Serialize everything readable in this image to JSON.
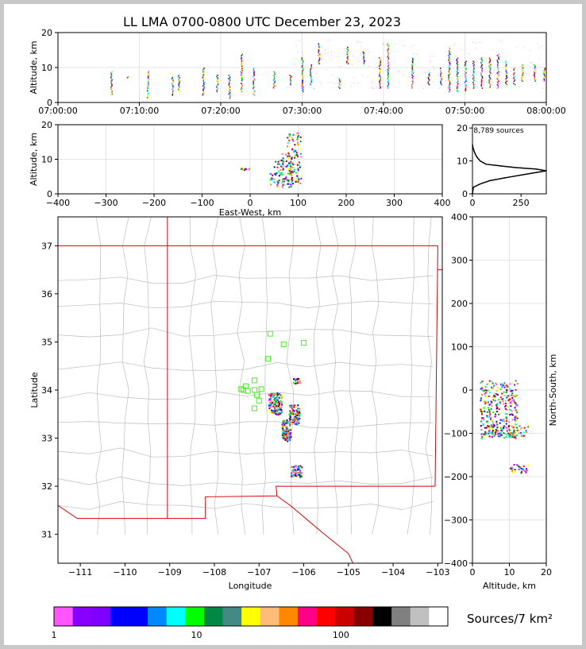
{
  "title": "LL LMA 0700-0800 UTC December 23, 2023",
  "colorbar": {
    "label": "Sources/7 km²",
    "colors": [
      "#ff55ff",
      "#8800ff",
      "#7f00ff",
      "#0000ff",
      "#0000ff",
      "#0088ff",
      "#00ffff",
      "#00ff00",
      "#008844",
      "#448888",
      "#ffff00",
      "#ffbb77",
      "#ff8800",
      "#ff0088",
      "#ff0000",
      "#cc0000",
      "#880000",
      "#000000",
      "#808080",
      "#c0c0c0",
      "#ffffff"
    ],
    "tick_labels": [
      "1",
      "10",
      "100"
    ]
  },
  "chart_data": [
    {
      "id": "time-height",
      "type": "scatter",
      "xlabel": "",
      "ylabel": "Altitude, km",
      "x_tick_labels": [
        "07:00:00",
        "07:10:00",
        "07:20:00",
        "07:30:00",
        "07:40:00",
        "07:50:00",
        "08:00:00"
      ],
      "x_ticks_minutes": [
        0,
        10,
        20,
        30,
        40,
        50,
        60
      ],
      "xlim_minutes": [
        0,
        60
      ],
      "ylim": [
        0,
        20
      ],
      "y_ticks": [
        0,
        10,
        20
      ],
      "grid": true,
      "bursts": [
        {
          "t": 6.5,
          "zmin": 2,
          "zmax": 9
        },
        {
          "t": 8.5,
          "zmin": 7,
          "zmax": 7.5
        },
        {
          "t": 11,
          "zmin": 1,
          "zmax": 9
        },
        {
          "t": 14,
          "zmin": 2,
          "zmax": 8
        },
        {
          "t": 14.8,
          "zmin": 3,
          "zmax": 8
        },
        {
          "t": 17.8,
          "zmin": 2,
          "zmax": 10
        },
        {
          "t": 19.5,
          "zmin": 3,
          "zmax": 8
        },
        {
          "t": 21,
          "zmin": 1,
          "zmax": 8
        },
        {
          "t": 22.5,
          "zmin": 3,
          "zmax": 14
        },
        {
          "t": 24,
          "zmin": 2,
          "zmax": 10
        },
        {
          "t": 26.5,
          "zmin": 4,
          "zmax": 9
        },
        {
          "t": 28.5,
          "zmin": 5,
          "zmax": 8
        },
        {
          "t": 30,
          "zmin": 3,
          "zmax": 13
        },
        {
          "t": 31,
          "zmin": 5,
          "zmax": 11
        },
        {
          "t": 32,
          "zmin": 11,
          "zmax": 17
        },
        {
          "t": 34.5,
          "zmin": 4,
          "zmax": 7
        },
        {
          "t": 35.5,
          "zmin": 11,
          "zmax": 16
        },
        {
          "t": 37.5,
          "zmin": 11,
          "zmax": 15
        },
        {
          "t": 39.5,
          "zmin": 4,
          "zmax": 13
        },
        {
          "t": 40.5,
          "zmin": 4,
          "zmax": 17
        },
        {
          "t": 43.5,
          "zmin": 4,
          "zmax": 13
        },
        {
          "t": 45.5,
          "zmin": 5,
          "zmax": 9
        },
        {
          "t": 47,
          "zmin": 5,
          "zmax": 10
        },
        {
          "t": 48,
          "zmin": 3,
          "zmax": 16
        },
        {
          "t": 49,
          "zmin": 3,
          "zmax": 13
        },
        {
          "t": 50,
          "zmin": 3,
          "zmax": 12
        },
        {
          "t": 51,
          "zmin": 4,
          "zmax": 12
        },
        {
          "t": 52,
          "zmin": 4,
          "zmax": 13
        },
        {
          "t": 53,
          "zmin": 4,
          "zmax": 13
        },
        {
          "t": 54,
          "zmin": 4,
          "zmax": 14
        },
        {
          "t": 55,
          "zmin": 5,
          "zmax": 12
        },
        {
          "t": 56,
          "zmin": 5,
          "zmax": 10
        },
        {
          "t": 57,
          "zmin": 6,
          "zmax": 11
        },
        {
          "t": 58.5,
          "zmin": 6,
          "zmax": 11
        },
        {
          "t": 59.7,
          "zmin": 6,
          "zmax": 10
        }
      ]
    },
    {
      "id": "ew-height",
      "type": "heatmap",
      "xlabel": "East-West, km",
      "ylabel": "Altitude, km",
      "xlim": [
        -400,
        400
      ],
      "x_ticks": [
        -400,
        -300,
        -200,
        -100,
        0,
        100,
        200,
        300,
        400
      ],
      "x_tick_labels": [
        "−400",
        "−300",
        "−200",
        "−100",
        "0",
        "100",
        "200",
        "300",
        "400"
      ],
      "ylim": [
        0,
        20
      ],
      "y_ticks": [
        0,
        10,
        20
      ],
      "grid": true,
      "clusters": [
        {
          "x0": 40,
          "x1": 70,
          "z0": 2,
          "z1": 10
        },
        {
          "x0": 65,
          "x1": 90,
          "z0": 2,
          "z1": 12
        },
        {
          "x0": 75,
          "x1": 105,
          "z0": 3,
          "z1": 18
        },
        {
          "x0": -20,
          "x1": 0,
          "z0": 7,
          "z1": 7.5
        }
      ]
    },
    {
      "id": "altitude-histogram",
      "type": "line",
      "annotation": "8,789 sources",
      "xlim": [
        0,
        380
      ],
      "x_ticks": [
        0,
        250
      ],
      "ylim": [
        0,
        21
      ],
      "y_ticks": [
        0,
        10,
        20
      ],
      "points": [
        [
          0,
          0
        ],
        [
          5,
          2
        ],
        [
          40,
          3
        ],
        [
          90,
          4
        ],
        [
          180,
          5
        ],
        [
          280,
          6
        ],
        [
          380,
          7
        ],
        [
          330,
          7.5
        ],
        [
          220,
          8
        ],
        [
          140,
          8.5
        ],
        [
          70,
          9
        ],
        [
          40,
          10
        ],
        [
          25,
          11
        ],
        [
          15,
          12
        ],
        [
          8,
          13
        ],
        [
          3,
          14
        ],
        [
          0,
          15
        ]
      ]
    },
    {
      "id": "plan-view",
      "type": "scatter",
      "xlabel": "Longitude",
      "ylabel": "Latitude",
      "xlim": [
        -111.5,
        -102.9
      ],
      "x_ticks": [
        -111,
        -110,
        -109,
        -108,
        -107,
        -106,
        -105,
        -104,
        -103
      ],
      "x_tick_labels": [
        "−111",
        "−110",
        "−109",
        "−108",
        "−107",
        "−106",
        "−105",
        "−104",
        "−103"
      ],
      "ylim": [
        30.4,
        37.6
      ],
      "y_ticks": [
        31,
        32,
        33,
        34,
        35,
        36,
        37
      ],
      "stations": [
        [
          -106.75,
          35.17
        ],
        [
          -106.45,
          34.95
        ],
        [
          -106.0,
          34.98
        ],
        [
          -106.8,
          34.65
        ],
        [
          -107.1,
          34.2
        ],
        [
          -107.3,
          34.08
        ],
        [
          -107.35,
          34.0
        ],
        [
          -107.25,
          33.98
        ],
        [
          -107.1,
          34.0
        ],
        [
          -106.95,
          34.02
        ],
        [
          -107.05,
          33.9
        ],
        [
          -107.0,
          33.78
        ],
        [
          -107.1,
          33.62
        ],
        [
          -107.4,
          34.02
        ]
      ],
      "clusters": [
        {
          "lon0": -106.8,
          "lon1": -106.5,
          "lat0": 33.5,
          "lat1": 33.95
        },
        {
          "lon0": -106.5,
          "lon1": -106.3,
          "lat0": 32.95,
          "lat1": 33.4
        },
        {
          "lon0": -106.35,
          "lon1": -106.1,
          "lat0": 33.3,
          "lat1": 33.7
        },
        {
          "lon0": -106.3,
          "lon1": -106.05,
          "lat0": 32.2,
          "lat1": 32.45
        },
        {
          "lon0": -106.25,
          "lon1": -106.1,
          "lat0": 34.15,
          "lat1": 34.25
        }
      ]
    },
    {
      "id": "ns-height",
      "type": "heatmap",
      "xlabel": "Altitude, km",
      "ylabel": "North-South, km",
      "xlim": [
        0,
        20
      ],
      "x_ticks": [
        0,
        10,
        20
      ],
      "ylim": [
        -400,
        400
      ],
      "y_ticks": [
        -400,
        -300,
        -200,
        -100,
        0,
        100,
        200,
        300,
        400
      ],
      "y_tick_labels": [
        "−400",
        "−300",
        "−200",
        "−100",
        "0",
        "100",
        "200",
        "300",
        "400"
      ],
      "grid": true,
      "clusters": [
        {
          "z0": 2,
          "z1": 12,
          "y0": -110,
          "y1": 25
        },
        {
          "z0": 3,
          "z1": 15,
          "y0": -105,
          "y1": -80
        },
        {
          "z0": 10,
          "z1": 15,
          "y0": -190,
          "y1": -170
        }
      ]
    }
  ]
}
